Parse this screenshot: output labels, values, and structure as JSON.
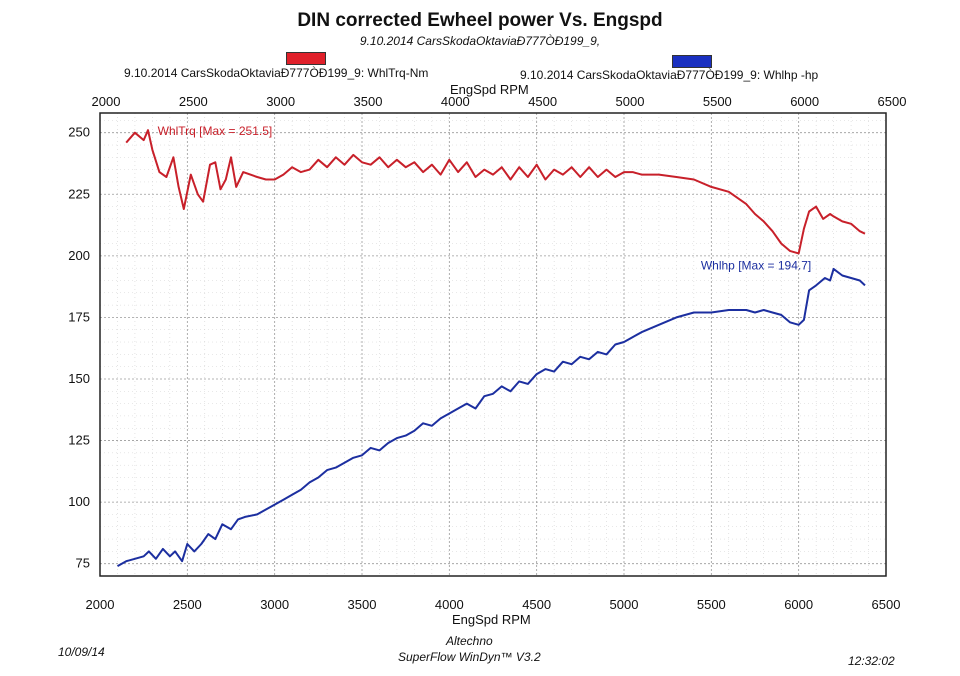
{
  "header": {
    "title": "DIN corrected Ewheel power Vs. Engspd",
    "subtitle": "9.10.2014 CarsSkodaOktaviaÐ777ÒÐ199_9,"
  },
  "legend": {
    "series1_label": "9.10.2014 CarsSkodaOktaviaÐ777ÒÐ199_9: WhlTrq-Nm",
    "series2_label": "9.10.2014 CarsSkodaOktaviaÐ777ÒÐ199_9: Whlhp -hp"
  },
  "colors": {
    "torque": "#c8202a",
    "power": "#1c2fa0",
    "swatch_torque": "#e0202a",
    "swatch_power": "#1a30c0"
  },
  "footer": {
    "date": "10/09/14",
    "vendor": "Altechno",
    "software": "SuperFlow WinDyn™ V3.2",
    "time": "12:32:02"
  },
  "chart_data": {
    "type": "line",
    "title": "DIN corrected Ewheel power Vs. Engspd",
    "xlabel": "EngSpd RPM",
    "ylabel": "",
    "xlim": [
      2000,
      6500
    ],
    "ylim": [
      70,
      258
    ],
    "x_ticks": [
      2000,
      2500,
      3000,
      3500,
      4000,
      4500,
      5000,
      5500,
      6000,
      6500
    ],
    "y_ticks": [
      75,
      100,
      125,
      150,
      175,
      200,
      225,
      250
    ],
    "grid": true,
    "x_axis_labels_top_and_bottom": true,
    "annotations": [
      {
        "series": "WhlTrq",
        "text": "WhlTrq [Max = 251.5]"
      },
      {
        "series": "Whlhp",
        "text": "Whlhp  [Max = 194.7]"
      }
    ],
    "series": [
      {
        "name": "WhlTrq-Nm",
        "color": "#c8202a",
        "x": [
          2150,
          2200,
          2250,
          2275,
          2300,
          2340,
          2380,
          2420,
          2450,
          2480,
          2520,
          2560,
          2590,
          2630,
          2660,
          2690,
          2720,
          2750,
          2780,
          2820,
          2900,
          2950,
          3000,
          3050,
          3100,
          3150,
          3200,
          3250,
          3300,
          3350,
          3400,
          3450,
          3500,
          3550,
          3600,
          3650,
          3700,
          3750,
          3800,
          3850,
          3900,
          3950,
          4000,
          4050,
          4100,
          4150,
          4200,
          4250,
          4300,
          4350,
          4400,
          4450,
          4500,
          4550,
          4600,
          4650,
          4700,
          4750,
          4800,
          4850,
          4900,
          4950,
          5000,
          5050,
          5100,
          5200,
          5300,
          5400,
          5500,
          5600,
          5700,
          5750,
          5800,
          5850,
          5900,
          5950,
          6000,
          6030,
          6060,
          6100,
          6140,
          6180,
          6200,
          6250,
          6300,
          6350,
          6380
        ],
        "values": [
          246,
          250,
          247,
          251,
          243,
          234,
          232,
          240,
          228,
          219,
          233,
          225,
          222,
          237,
          238,
          227,
          231,
          240,
          228,
          234,
          232,
          231,
          231,
          233,
          236,
          234,
          235,
          239,
          236,
          240,
          237,
          241,
          238,
          237,
          240,
          236,
          239,
          236,
          238,
          234,
          237,
          233,
          239,
          234,
          238,
          232,
          235,
          233,
          236,
          231,
          236,
          232,
          237,
          231,
          235,
          233,
          236,
          232,
          236,
          232,
          235,
          232,
          234,
          234,
          233,
          233,
          232,
          231,
          228,
          226,
          221,
          217,
          214,
          210,
          205,
          202,
          201,
          211,
          218,
          220,
          215,
          217,
          216,
          214,
          213,
          210,
          209
        ]
      },
      {
        "name": "Whlhp -hp",
        "color": "#1c2fa0",
        "x": [
          2100,
          2150,
          2200,
          2250,
          2280,
          2320,
          2360,
          2400,
          2430,
          2470,
          2500,
          2540,
          2580,
          2620,
          2660,
          2700,
          2750,
          2790,
          2830,
          2900,
          2950,
          3000,
          3050,
          3100,
          3150,
          3200,
          3250,
          3300,
          3350,
          3400,
          3450,
          3500,
          3550,
          3600,
          3650,
          3700,
          3750,
          3800,
          3850,
          3900,
          3950,
          4000,
          4050,
          4100,
          4150,
          4200,
          4250,
          4300,
          4350,
          4400,
          4450,
          4500,
          4550,
          4600,
          4650,
          4700,
          4750,
          4800,
          4850,
          4900,
          4950,
          5000,
          5050,
          5100,
          5200,
          5300,
          5400,
          5500,
          5600,
          5650,
          5700,
          5750,
          5800,
          5850,
          5900,
          5950,
          6000,
          6030,
          6060,
          6100,
          6150,
          6180,
          6200,
          6250,
          6300,
          6350,
          6380
        ],
        "values": [
          74,
          76,
          77,
          78,
          80,
          77,
          81,
          78,
          80,
          76,
          83,
          80,
          83,
          87,
          85,
          91,
          89,
          93,
          94,
          95,
          97,
          99,
          101,
          103,
          105,
          108,
          110,
          113,
          114,
          116,
          118,
          119,
          122,
          121,
          124,
          126,
          127,
          129,
          132,
          131,
          134,
          136,
          138,
          140,
          138,
          143,
          144,
          147,
          145,
          149,
          148,
          152,
          154,
          153,
          157,
          156,
          159,
          158,
          161,
          160,
          164,
          165,
          167,
          169,
          172,
          175,
          177,
          177,
          178,
          178,
          178,
          177,
          178,
          177,
          176,
          173,
          172,
          174,
          186,
          188,
          191,
          190,
          194.7,
          192,
          191,
          190,
          188
        ]
      }
    ]
  }
}
